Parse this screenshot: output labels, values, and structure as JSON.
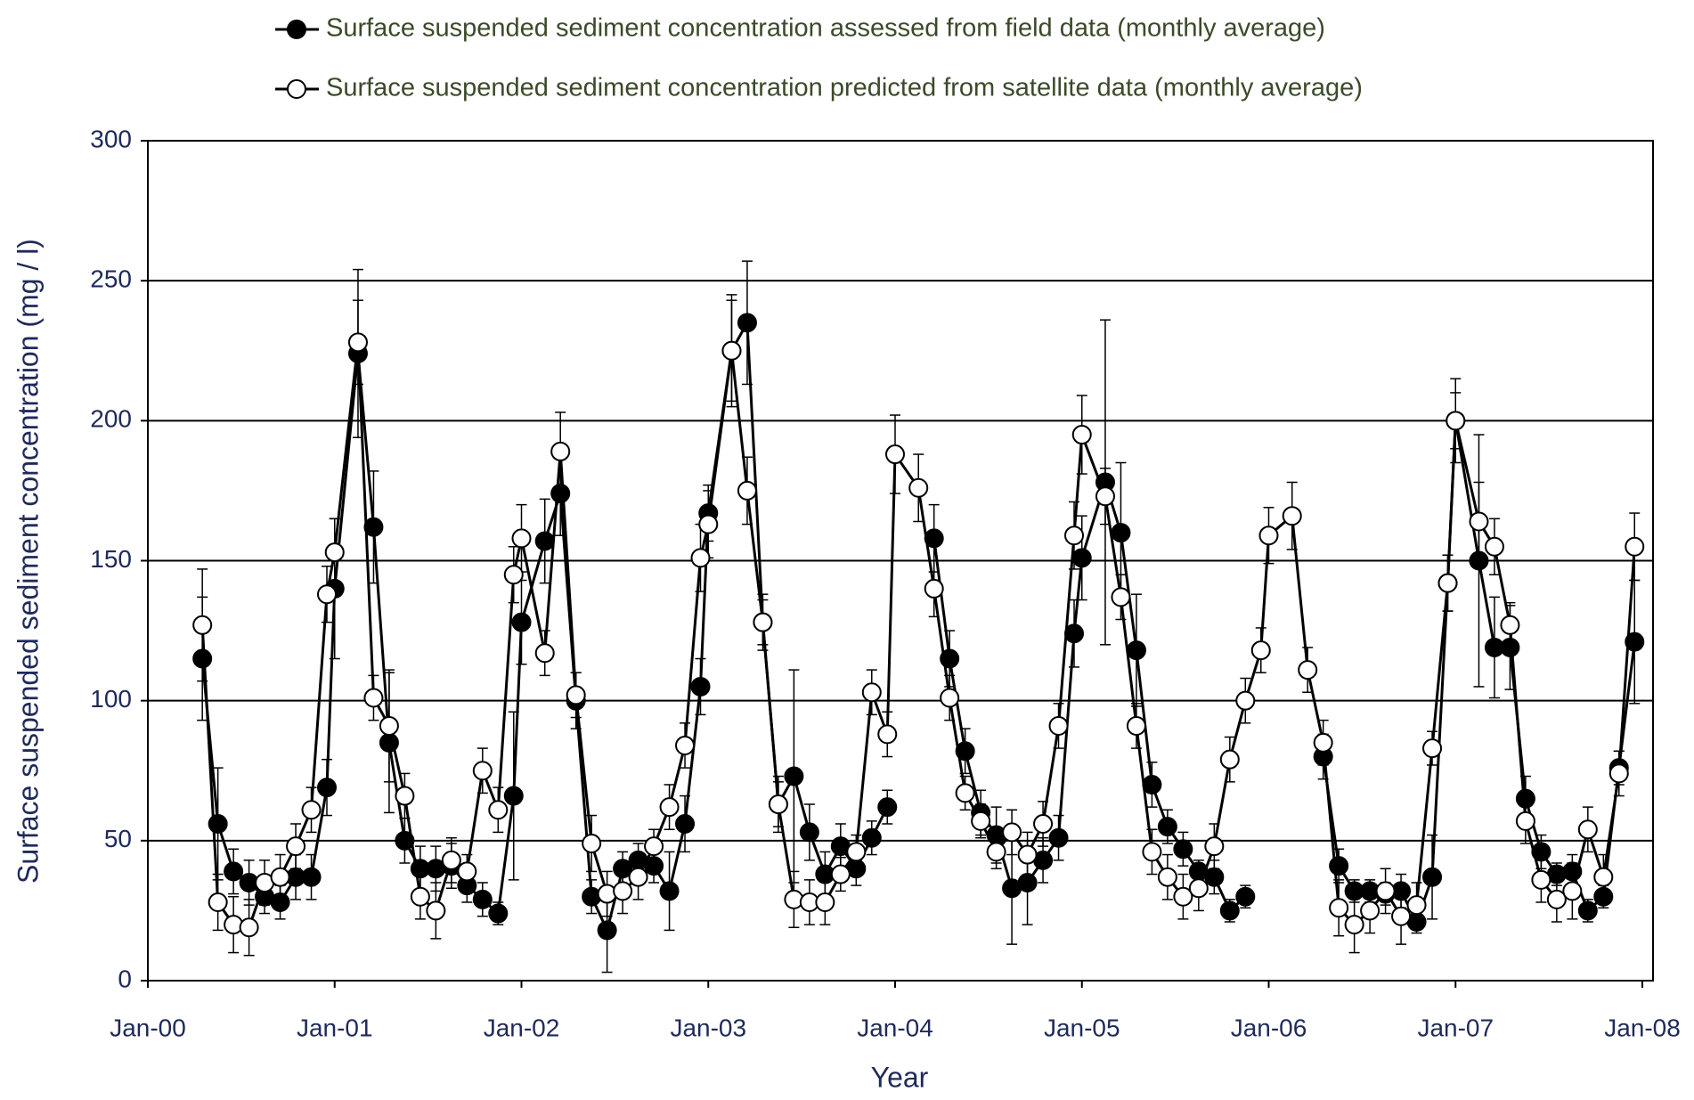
{
  "chart_data": {
    "type": "line",
    "legend_entries_position": "top",
    "x_label": "Year",
    "y_label": "Surface suspended sediment concentration (mg / l)",
    "x": [
      "2000-04",
      "2000-05",
      "2000-06",
      "2000-07",
      "2000-08",
      "2000-09",
      "2000-10",
      "2000-11",
      "2000-12",
      "2001-01",
      "2001-02",
      "2001-03",
      "2001-04",
      "2001-05",
      "2001-06",
      "2001-07",
      "2001-08",
      "2001-09",
      "2001-10",
      "2001-11",
      "2001-12",
      "2002-01",
      "2002-02",
      "2002-03",
      "2002-04",
      "2002-05",
      "2002-06",
      "2002-07",
      "2002-08",
      "2002-09",
      "2002-10",
      "2002-11",
      "2002-12",
      "2003-01",
      "2003-02",
      "2003-03",
      "2003-04",
      "2003-05",
      "2003-06",
      "2003-07",
      "2003-08",
      "2003-09",
      "2003-10",
      "2003-11",
      "2003-12",
      "2004-01",
      "2004-02",
      "2004-03",
      "2004-04",
      "2004-05",
      "2004-06",
      "2004-07",
      "2004-08",
      "2004-09",
      "2004-10",
      "2004-11",
      "2004-12",
      "2005-01",
      "2005-02",
      "2005-03",
      "2005-04",
      "2005-05",
      "2005-06",
      "2005-07",
      "2005-08",
      "2005-09",
      "2005-10",
      "2005-11",
      "2005-12",
      "2006-01",
      "2006-02",
      "2006-03",
      "2006-04",
      "2006-05",
      "2006-06",
      "2006-07",
      "2006-08",
      "2006-09",
      "2006-10",
      "2006-11",
      "2006-12",
      "2007-01",
      "2007-02",
      "2007-03",
      "2007-04",
      "2007-05",
      "2007-06",
      "2007-07",
      "2007-08",
      "2007-09",
      "2007-10",
      "2007-11",
      "2007-12"
    ],
    "series": [
      {
        "name": "Surface suspended sediment concentration assessed from field data (monthly average)",
        "color": "#000000",
        "marker_fill": "#000000",
        "values": [
          115,
          56,
          39,
          35,
          30,
          28,
          37,
          37,
          69,
          140,
          224,
          162,
          85,
          50,
          40,
          40,
          41,
          34,
          29,
          24,
          66,
          128,
          157,
          174,
          100,
          30,
          18,
          40,
          43,
          41,
          32,
          56,
          105,
          167,
          225,
          235,
          128,
          63,
          73,
          53,
          38,
          48,
          40,
          51,
          62,
          null,
          null,
          158,
          115,
          82,
          60,
          52,
          33,
          35,
          43,
          51,
          124,
          151,
          178,
          160,
          118,
          70,
          55,
          47,
          39,
          37,
          25,
          30,
          null,
          null,
          null,
          null,
          80,
          41,
          32,
          32,
          31,
          32,
          21,
          37,
          142,
          200,
          150,
          119,
          119,
          65,
          46,
          38,
          39,
          25,
          30,
          76,
          121
        ],
        "errors": [
          22,
          20,
          8,
          8,
          6,
          6,
          8,
          8,
          10,
          25,
          30,
          20,
          25,
          8,
          8,
          8,
          8,
          6,
          6,
          4,
          30,
          15,
          15,
          15,
          10,
          6,
          15,
          6,
          6,
          6,
          14,
          10,
          10,
          10,
          20,
          22,
          10,
          10,
          38,
          10,
          8,
          8,
          6,
          6,
          6,
          null,
          null,
          12,
          10,
          8,
          8,
          10,
          20,
          15,
          8,
          8,
          12,
          15,
          58,
          25,
          20,
          8,
          6,
          6,
          4,
          6,
          4,
          4,
          null,
          null,
          null,
          null,
          8,
          6,
          4,
          4,
          4,
          6,
          4,
          15,
          10,
          10,
          45,
          18,
          15,
          8,
          6,
          4,
          6,
          4,
          4,
          6,
          22
        ]
      },
      {
        "name": "Surface suspended sediment concentration predicted from satellite data (monthly average)",
        "color": "#000000",
        "marker_fill": "#ffffff",
        "values": [
          127,
          28,
          20,
          19,
          35,
          37,
          48,
          61,
          138,
          153,
          228,
          101,
          91,
          66,
          30,
          25,
          43,
          39,
          75,
          61,
          145,
          158,
          117,
          189,
          102,
          49,
          31,
          32,
          37,
          48,
          62,
          84,
          151,
          163,
          225,
          175,
          128,
          63,
          29,
          28,
          28,
          38,
          46,
          103,
          88,
          188,
          176,
          140,
          101,
          67,
          57,
          46,
          53,
          45,
          56,
          91,
          159,
          195,
          173,
          137,
          91,
          46,
          37,
          30,
          33,
          48,
          79,
          100,
          118,
          159,
          166,
          111,
          85,
          26,
          20,
          25,
          32,
          23,
          27,
          83,
          142,
          200,
          164,
          155,
          127,
          57,
          36,
          29,
          32,
          54,
          37,
          74,
          155
        ],
        "errors": [
          20,
          10,
          10,
          10,
          8,
          8,
          8,
          8,
          10,
          12,
          15,
          8,
          20,
          8,
          8,
          10,
          8,
          6,
          8,
          8,
          10,
          12,
          8,
          14,
          8,
          10,
          8,
          8,
          8,
          6,
          8,
          8,
          12,
          12,
          18,
          12,
          8,
          8,
          10,
          8,
          8,
          6,
          6,
          8,
          8,
          14,
          12,
          10,
          8,
          6,
          6,
          6,
          8,
          8,
          8,
          8,
          12,
          14,
          10,
          8,
          8,
          8,
          8,
          8,
          8,
          8,
          8,
          8,
          8,
          10,
          12,
          8,
          8,
          10,
          10,
          8,
          8,
          10,
          8,
          6,
          10,
          15,
          14,
          10,
          8,
          8,
          8,
          8,
          10,
          8,
          8,
          8,
          12
        ]
      }
    ],
    "xlim": [
      "2000-01",
      "2008-01"
    ],
    "xticks": [
      {
        "value": "2000-01",
        "label": "Jan-00"
      },
      {
        "value": "2001-01",
        "label": "Jan-01"
      },
      {
        "value": "2002-01",
        "label": "Jan-02"
      },
      {
        "value": "2003-01",
        "label": "Jan-03"
      },
      {
        "value": "2004-01",
        "label": "Jan-04"
      },
      {
        "value": "2005-01",
        "label": "Jan-05"
      },
      {
        "value": "2006-01",
        "label": "Jan-06"
      },
      {
        "value": "2007-01",
        "label": "Jan-07"
      },
      {
        "value": "2008-01",
        "label": "Jan-08"
      }
    ],
    "ylim": [
      0,
      300
    ],
    "yticks": [
      0,
      50,
      100,
      150,
      200,
      250,
      300
    ],
    "grid": true
  }
}
